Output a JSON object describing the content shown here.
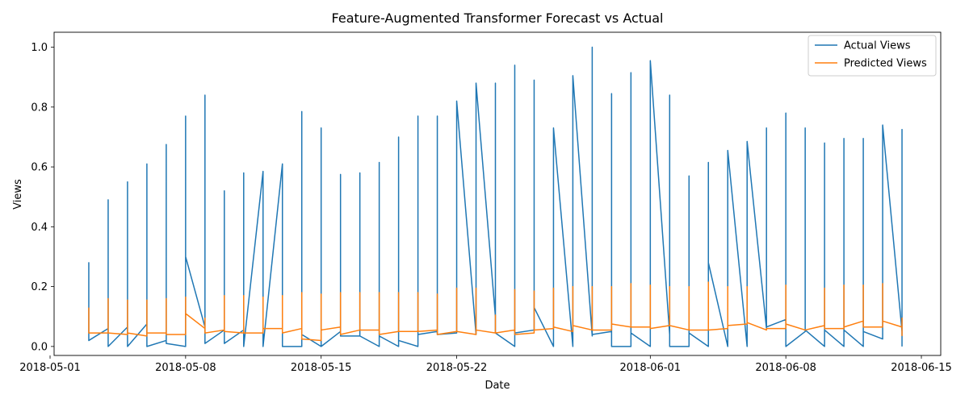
{
  "chart_data": {
    "type": "line",
    "title": "Feature-Augmented Transformer Forecast vs Actual",
    "xlabel": "Date",
    "ylabel": "Views",
    "xlim": [
      "2018-05-01T05:00",
      "2018-06-16T00:00"
    ],
    "ylim": [
      -0.03,
      1.05
    ],
    "x_ticks": [
      "2018-05-01",
      "2018-05-08",
      "2018-05-15",
      "2018-05-22",
      "2018-06-01",
      "2018-06-08",
      "2018-06-15"
    ],
    "y_ticks": [
      0.0,
      0.2,
      0.4,
      0.6,
      0.8,
      1.0
    ],
    "y_tick_labels": [
      "0.0",
      "0.2",
      "0.4",
      "0.6",
      "0.8",
      "1.0"
    ],
    "grid": false,
    "legend_position": "upper right",
    "series": [
      {
        "name": "Actual Views",
        "color": "#1f77b4",
        "points": [
          [
            "2018-05-03T00:00",
            0.05
          ],
          [
            "2018-05-03T00:00",
            0.28
          ],
          [
            "2018-05-03T00:00",
            0.02
          ],
          [
            "2018-05-04T00:00",
            0.06
          ],
          [
            "2018-05-04T00:00",
            0.49
          ],
          [
            "2018-05-04T00:00",
            0.0
          ],
          [
            "2018-05-05T00:00",
            0.065
          ],
          [
            "2018-05-05T00:00",
            0.55
          ],
          [
            "2018-05-05T00:00",
            0.0
          ],
          [
            "2018-05-06T00:00",
            0.075
          ],
          [
            "2018-05-06T00:00",
            0.61
          ],
          [
            "2018-05-06T00:00",
            0.0
          ],
          [
            "2018-05-07T00:00",
            0.02
          ],
          [
            "2018-05-07T00:00",
            0.675
          ],
          [
            "2018-05-07T00:00",
            0.01
          ],
          [
            "2018-05-08T00:00",
            0.0
          ],
          [
            "2018-05-08T00:00",
            0.77
          ],
          [
            "2018-05-08T00:00",
            0.3
          ],
          [
            "2018-05-09T00:00",
            0.065
          ],
          [
            "2018-05-09T00:00",
            0.84
          ],
          [
            "2018-05-09T00:00",
            0.01
          ],
          [
            "2018-05-10T00:00",
            0.055
          ],
          [
            "2018-05-10T00:00",
            0.52
          ],
          [
            "2018-05-10T00:00",
            0.01
          ],
          [
            "2018-05-11T00:00",
            0.055
          ],
          [
            "2018-05-11T00:00",
            0.58
          ],
          [
            "2018-05-11T00:00",
            0.0
          ],
          [
            "2018-05-12T00:00",
            0.585
          ],
          [
            "2018-05-12T00:00",
            0.0
          ],
          [
            "2018-05-13T00:00",
            0.61
          ],
          [
            "2018-05-13T00:00",
            0.0
          ],
          [
            "2018-05-14T00:00",
            0.0
          ],
          [
            "2018-05-14T00:00",
            0.785
          ],
          [
            "2018-05-14T00:00",
            0.04
          ],
          [
            "2018-05-15T00:00",
            0.0
          ],
          [
            "2018-05-15T00:00",
            0.73
          ],
          [
            "2018-05-15T00:00",
            0.0
          ],
          [
            "2018-05-16T00:00",
            0.05
          ],
          [
            "2018-05-16T00:00",
            0.575
          ],
          [
            "2018-05-16T00:00",
            0.035
          ],
          [
            "2018-05-17T00:00",
            0.035
          ],
          [
            "2018-05-17T00:00",
            0.58
          ],
          [
            "2018-05-17T00:00",
            0.035
          ],
          [
            "2018-05-18T00:00",
            0.0
          ],
          [
            "2018-05-18T00:00",
            0.615
          ],
          [
            "2018-05-18T00:00",
            0.035
          ],
          [
            "2018-05-19T00:00",
            0.0
          ],
          [
            "2018-05-19T00:00",
            0.7
          ],
          [
            "2018-05-19T00:00",
            0.02
          ],
          [
            "2018-05-20T00:00",
            0.0
          ],
          [
            "2018-05-20T00:00",
            0.77
          ],
          [
            "2018-05-20T00:00",
            0.04
          ],
          [
            "2018-05-21T00:00",
            0.05
          ],
          [
            "2018-05-21T00:00",
            0.77
          ],
          [
            "2018-05-21T00:00",
            0.04
          ],
          [
            "2018-05-22T00:00",
            0.045
          ],
          [
            "2018-05-22T00:00",
            0.82
          ],
          [
            "2018-05-23T00:00",
            0.04
          ],
          [
            "2018-05-23T00:00",
            0.88
          ],
          [
            "2018-05-24T00:00",
            0.1
          ],
          [
            "2018-05-24T00:00",
            0.88
          ],
          [
            "2018-05-24T00:00",
            0.045
          ],
          [
            "2018-05-25T00:00",
            0.0
          ],
          [
            "2018-05-25T00:00",
            0.94
          ],
          [
            "2018-05-25T00:00",
            0.045
          ],
          [
            "2018-05-26T00:00",
            0.055
          ],
          [
            "2018-05-26T00:00",
            0.89
          ],
          [
            "2018-05-26T00:00",
            0.13
          ],
          [
            "2018-05-27T00:00",
            0.0
          ],
          [
            "2018-05-27T00:00",
            0.73
          ],
          [
            "2018-05-28T00:00",
            0.0
          ],
          [
            "2018-05-28T00:00",
            0.905
          ],
          [
            "2018-05-29T00:00",
            0.035
          ],
          [
            "2018-05-29T00:00",
            1.0
          ],
          [
            "2018-05-29T00:00",
            0.04
          ],
          [
            "2018-05-30T00:00",
            0.05
          ],
          [
            "2018-05-30T00:00",
            0.845
          ],
          [
            "2018-05-30T00:00",
            0.0
          ],
          [
            "2018-05-31T00:00",
            0.0
          ],
          [
            "2018-05-31T00:00",
            0.915
          ],
          [
            "2018-05-31T00:00",
            0.045
          ],
          [
            "2018-06-01T00:00",
            0.0
          ],
          [
            "2018-06-01T00:00",
            0.955
          ],
          [
            "2018-06-02T00:00",
            0.04
          ],
          [
            "2018-06-02T00:00",
            0.84
          ],
          [
            "2018-06-02T00:00",
            0.0
          ],
          [
            "2018-06-03T00:00",
            0.0
          ],
          [
            "2018-06-03T00:00",
            0.57
          ],
          [
            "2018-06-03T00:00",
            0.045
          ],
          [
            "2018-06-04T00:00",
            0.0
          ],
          [
            "2018-06-04T00:00",
            0.615
          ],
          [
            "2018-06-04T00:00",
            0.28
          ],
          [
            "2018-06-05T00:00",
            0.0
          ],
          [
            "2018-06-05T00:00",
            0.655
          ],
          [
            "2018-06-06T00:00",
            0.0
          ],
          [
            "2018-06-06T00:00",
            0.685
          ],
          [
            "2018-06-07T00:00",
            0.06
          ],
          [
            "2018-06-07T00:00",
            0.73
          ],
          [
            "2018-06-07T00:00",
            0.065
          ],
          [
            "2018-06-08T00:00",
            0.09
          ],
          [
            "2018-06-08T00:00",
            0.78
          ],
          [
            "2018-06-08T00:00",
            0.0
          ],
          [
            "2018-06-09T00:00",
            0.05
          ],
          [
            "2018-06-09T00:00",
            0.73
          ],
          [
            "2018-06-09T00:00",
            0.055
          ],
          [
            "2018-06-10T00:00",
            0.0
          ],
          [
            "2018-06-10T00:00",
            0.68
          ],
          [
            "2018-06-10T00:00",
            0.055
          ],
          [
            "2018-06-11T00:00",
            0.0
          ],
          [
            "2018-06-11T00:00",
            0.695
          ],
          [
            "2018-06-11T00:00",
            0.055
          ],
          [
            "2018-06-12T00:00",
            0.0
          ],
          [
            "2018-06-12T00:00",
            0.695
          ],
          [
            "2018-06-12T00:00",
            0.05
          ],
          [
            "2018-06-13T00:00",
            0.025
          ],
          [
            "2018-06-13T00:00",
            0.74
          ],
          [
            "2018-06-14T00:00",
            0.05
          ],
          [
            "2018-06-14T00:00",
            0.725
          ],
          [
            "2018-06-14T00:00",
            0.0
          ]
        ]
      },
      {
        "name": "Predicted Views",
        "color": "#ff7f0e",
        "points": [
          [
            "2018-05-03T00:00",
            0.13
          ],
          [
            "2018-05-03T00:00",
            0.045
          ],
          [
            "2018-05-04T00:00",
            0.045
          ],
          [
            "2018-05-04T00:00",
            0.16
          ],
          [
            "2018-05-04T00:00",
            0.045
          ],
          [
            "2018-05-05T00:00",
            0.04
          ],
          [
            "2018-05-05T00:00",
            0.155
          ],
          [
            "2018-05-05T00:00",
            0.045
          ],
          [
            "2018-05-06T00:00",
            0.035
          ],
          [
            "2018-05-06T00:00",
            0.155
          ],
          [
            "2018-05-06T00:00",
            0.045
          ],
          [
            "2018-05-07T00:00",
            0.045
          ],
          [
            "2018-05-07T00:00",
            0.16
          ],
          [
            "2018-05-07T00:00",
            0.04
          ],
          [
            "2018-05-08T00:00",
            0.04
          ],
          [
            "2018-05-08T00:00",
            0.165
          ],
          [
            "2018-05-08T00:00",
            0.11
          ],
          [
            "2018-05-09T00:00",
            0.06
          ],
          [
            "2018-05-09T00:00",
            0.095
          ],
          [
            "2018-05-09T00:00",
            0.045
          ],
          [
            "2018-05-10T00:00",
            0.055
          ],
          [
            "2018-05-10T00:00",
            0.17
          ],
          [
            "2018-05-10T00:00",
            0.05
          ],
          [
            "2018-05-11T00:00",
            0.045
          ],
          [
            "2018-05-11T00:00",
            0.17
          ],
          [
            "2018-05-11T00:00",
            0.045
          ],
          [
            "2018-05-12T00:00",
            0.045
          ],
          [
            "2018-05-12T00:00",
            0.165
          ],
          [
            "2018-05-12T00:00",
            0.06
          ],
          [
            "2018-05-13T00:00",
            0.06
          ],
          [
            "2018-05-13T00:00",
            0.17
          ],
          [
            "2018-05-13T00:00",
            0.045
          ],
          [
            "2018-05-14T00:00",
            0.06
          ],
          [
            "2018-05-14T00:00",
            0.18
          ],
          [
            "2018-05-14T00:00",
            0.025
          ],
          [
            "2018-05-15T00:00",
            0.02
          ],
          [
            "2018-05-15T00:00",
            0.175
          ],
          [
            "2018-05-15T00:00",
            0.055
          ],
          [
            "2018-05-16T00:00",
            0.065
          ],
          [
            "2018-05-16T00:00",
            0.18
          ],
          [
            "2018-05-16T00:00",
            0.04
          ],
          [
            "2018-05-17T00:00",
            0.055
          ],
          [
            "2018-05-17T00:00",
            0.18
          ],
          [
            "2018-05-17T00:00",
            0.055
          ],
          [
            "2018-05-18T00:00",
            0.055
          ],
          [
            "2018-05-18T00:00",
            0.18
          ],
          [
            "2018-05-18T00:00",
            0.04
          ],
          [
            "2018-05-19T00:00",
            0.05
          ],
          [
            "2018-05-19T00:00",
            0.18
          ],
          [
            "2018-05-19T00:00",
            0.05
          ],
          [
            "2018-05-20T00:00",
            0.05
          ],
          [
            "2018-05-20T00:00",
            0.18
          ],
          [
            "2018-05-20T00:00",
            0.05
          ],
          [
            "2018-05-21T00:00",
            0.055
          ],
          [
            "2018-05-21T00:00",
            0.175
          ],
          [
            "2018-05-21T00:00",
            0.04
          ],
          [
            "2018-05-22T00:00",
            0.05
          ],
          [
            "2018-05-22T00:00",
            0.195
          ],
          [
            "2018-05-22T00:00",
            0.05
          ],
          [
            "2018-05-23T00:00",
            0.04
          ],
          [
            "2018-05-23T00:00",
            0.195
          ],
          [
            "2018-05-23T00:00",
            0.055
          ],
          [
            "2018-05-24T00:00",
            0.045
          ],
          [
            "2018-05-24T00:00",
            0.105
          ],
          [
            "2018-05-24T00:00",
            0.045
          ],
          [
            "2018-05-25T00:00",
            0.055
          ],
          [
            "2018-05-25T00:00",
            0.19
          ],
          [
            "2018-05-25T00:00",
            0.04
          ],
          [
            "2018-05-26T00:00",
            0.045
          ],
          [
            "2018-05-26T00:00",
            0.185
          ],
          [
            "2018-05-26T00:00",
            0.055
          ],
          [
            "2018-05-27T00:00",
            0.06
          ],
          [
            "2018-05-27T00:00",
            0.195
          ],
          [
            "2018-05-27T00:00",
            0.065
          ],
          [
            "2018-05-28T00:00",
            0.05
          ],
          [
            "2018-05-28T00:00",
            0.2
          ],
          [
            "2018-05-28T00:00",
            0.07
          ],
          [
            "2018-05-29T00:00",
            0.055
          ],
          [
            "2018-05-29T00:00",
            0.2
          ],
          [
            "2018-05-29T00:00",
            0.055
          ],
          [
            "2018-05-30T00:00",
            0.055
          ],
          [
            "2018-05-30T00:00",
            0.2
          ],
          [
            "2018-05-30T00:00",
            0.075
          ],
          [
            "2018-05-31T00:00",
            0.065
          ],
          [
            "2018-05-31T00:00",
            0.21
          ],
          [
            "2018-05-31T00:00",
            0.065
          ],
          [
            "2018-06-01T00:00",
            0.065
          ],
          [
            "2018-06-01T00:00",
            0.205
          ],
          [
            "2018-06-01T00:00",
            0.06
          ],
          [
            "2018-06-02T00:00",
            0.07
          ],
          [
            "2018-06-02T00:00",
            0.2
          ],
          [
            "2018-06-02T00:00",
            0.07
          ],
          [
            "2018-06-03T00:00",
            0.055
          ],
          [
            "2018-06-03T00:00",
            0.2
          ],
          [
            "2018-06-03T00:00",
            0.055
          ],
          [
            "2018-06-04T00:00",
            0.055
          ],
          [
            "2018-06-04T00:00",
            0.215
          ],
          [
            "2018-06-04T00:00",
            0.055
          ],
          [
            "2018-06-05T00:00",
            0.06
          ],
          [
            "2018-06-05T00:00",
            0.2
          ],
          [
            "2018-06-05T00:00",
            0.07
          ],
          [
            "2018-06-06T00:00",
            0.075
          ],
          [
            "2018-06-06T00:00",
            0.2
          ],
          [
            "2018-06-06T00:00",
            0.08
          ],
          [
            "2018-06-07T00:00",
            0.055
          ],
          [
            "2018-06-07T00:00",
            0.06
          ],
          [
            "2018-06-08T00:00",
            0.06
          ],
          [
            "2018-06-08T00:00",
            0.205
          ],
          [
            "2018-06-08T00:00",
            0.075
          ],
          [
            "2018-06-09T00:00",
            0.055
          ],
          [
            "2018-06-09T00:00",
            0.055
          ],
          [
            "2018-06-10T00:00",
            0.07
          ],
          [
            "2018-06-10T00:00",
            0.195
          ],
          [
            "2018-06-10T00:00",
            0.06
          ],
          [
            "2018-06-11T00:00",
            0.06
          ],
          [
            "2018-06-11T00:00",
            0.205
          ],
          [
            "2018-06-11T00:00",
            0.065
          ],
          [
            "2018-06-12T00:00",
            0.085
          ],
          [
            "2018-06-12T00:00",
            0.205
          ],
          [
            "2018-06-12T00:00",
            0.065
          ],
          [
            "2018-06-13T00:00",
            0.065
          ],
          [
            "2018-06-13T00:00",
            0.21
          ],
          [
            "2018-06-13T00:00",
            0.085
          ],
          [
            "2018-06-14T00:00",
            0.065
          ],
          [
            "2018-06-14T00:00",
            0.095
          ],
          [
            "2018-06-14T00:00",
            0.035
          ]
        ]
      }
    ]
  }
}
